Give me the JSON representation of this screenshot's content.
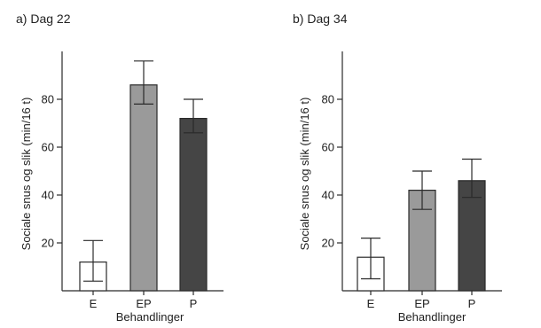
{
  "chart_data": [
    {
      "type": "bar",
      "title": "a) Dag 22",
      "xlabel": "Behandlinger",
      "ylabel": "Sociale snus og slik (min/16 t)",
      "categories": [
        "E",
        "EP",
        "P"
      ],
      "values": [
        12,
        86,
        72
      ],
      "error_upper": [
        21,
        96,
        80
      ],
      "error_lower": [
        4,
        78,
        66
      ],
      "colors": [
        "#ffffff",
        "#9a9a9a",
        "#454545"
      ],
      "ylim": [
        0,
        100
      ],
      "yticks": [
        20,
        40,
        60,
        80
      ],
      "grid": false
    },
    {
      "type": "bar",
      "title": "b) Dag 34",
      "xlabel": "Behandlinger",
      "ylabel": "Sociale snus og slik (min/16 t)",
      "categories": [
        "E",
        "EP",
        "P"
      ],
      "values": [
        14,
        42,
        46
      ],
      "error_upper": [
        22,
        50,
        55
      ],
      "error_lower": [
        5,
        34,
        39
      ],
      "colors": [
        "#ffffff",
        "#9a9a9a",
        "#454545"
      ],
      "ylim": [
        0,
        100
      ],
      "yticks": [
        20,
        40,
        60,
        80
      ],
      "grid": false
    }
  ]
}
